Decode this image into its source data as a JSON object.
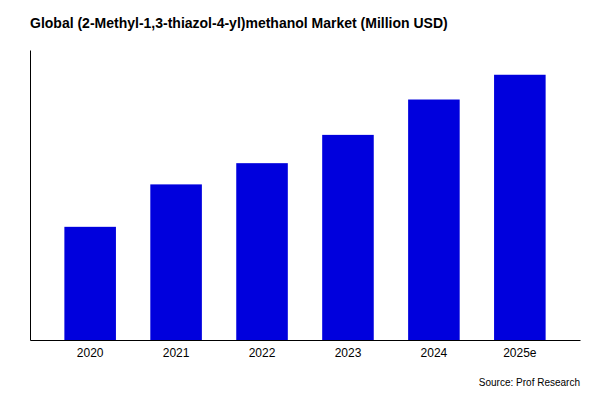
{
  "chart_data": {
    "type": "bar",
    "title": "Global (2-Methyl-1,3-thiazol-4-yl)methanol Market (Million USD)",
    "categories": [
      "2020",
      "2021",
      "2022",
      "2023",
      "2024",
      "2025e"
    ],
    "values": [
      32,
      44,
      50,
      58,
      68,
      75
    ],
    "color": "#0000dd",
    "ylim": [
      0,
      82
    ],
    "grid": false,
    "tick_labels": "x",
    "annotations": [
      "Source: Prof Research"
    ]
  }
}
